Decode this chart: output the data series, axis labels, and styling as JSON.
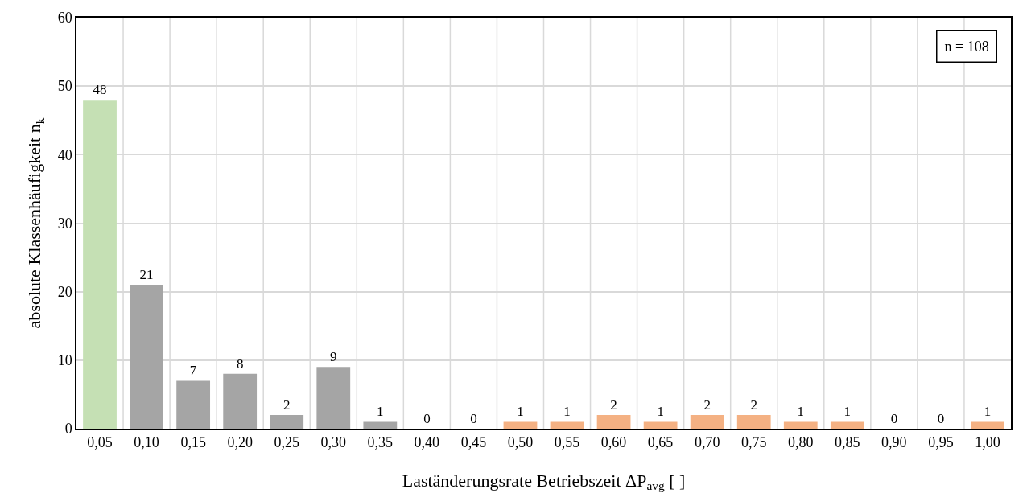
{
  "chart_data": {
    "type": "bar",
    "xlabel": "Laständerungsrate Betriebszeit ΔP$_{avg}$ [ ]",
    "ylabel": "absolute Klassenhäufigkeit n$_{k}$",
    "categories": [
      "0,05",
      "0,10",
      "0,15",
      "0,20",
      "0,25",
      "0,30",
      "0,35",
      "0,40",
      "0,45",
      "0,50",
      "0,55",
      "0,60",
      "0,65",
      "0,70",
      "0,75",
      "0,80",
      "0,85",
      "0,90",
      "0,95",
      "1,00"
    ],
    "values": [
      48,
      21,
      7,
      8,
      2,
      9,
      1,
      0,
      0,
      1,
      1,
      2,
      1,
      2,
      2,
      1,
      1,
      0,
      0,
      1
    ],
    "colors": [
      "#c5e0b4",
      "#a5a5a5",
      "#a5a5a5",
      "#a5a5a5",
      "#a5a5a5",
      "#a5a5a5",
      "#a5a5a5",
      "#a5a5a5",
      "#a5a5a5",
      "#f4b183",
      "#f4b183",
      "#f4b183",
      "#f4b183",
      "#f4b183",
      "#f4b183",
      "#f4b183",
      "#f4b183",
      "#f4b183",
      "#f4b183",
      "#f4b183"
    ],
    "ylim": [
      0,
      60
    ],
    "yticks": [
      0,
      10,
      20,
      30,
      40,
      50,
      60
    ],
    "grid": true,
    "data_labels": true,
    "annotations": [
      "n = 108"
    ]
  }
}
